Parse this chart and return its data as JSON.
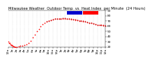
{
  "title": "Milwaukee Weather  Outdoor Temp  vs  Heat Index  per Minute  (24 Hours)",
  "bg_color": "#ffffff",
  "plot_bg": "#ffffff",
  "line_color_temp": "#ff0000",
  "line_color_heat": "#cc0000",
  "legend_blue": "#0000cc",
  "legend_red": "#ff0000",
  "ylim": [
    20,
    90
  ],
  "xlim": [
    0,
    1440
  ],
  "yticks": [
    20,
    30,
    40,
    50,
    60,
    70,
    80,
    90
  ],
  "grid_color": "#bbbbbb",
  "marker_size": 1.5,
  "title_fontsize": 3.8,
  "tick_fontsize": 3.2,
  "temp_data_x": [
    0,
    10,
    20,
    30,
    40,
    50,
    60,
    70,
    80,
    90,
    100,
    120,
    150,
    180,
    210,
    240,
    270,
    300,
    330,
    360,
    390,
    420,
    450,
    480,
    510,
    540,
    570,
    600,
    630,
    660,
    690,
    720,
    750,
    780,
    810,
    840,
    870,
    900,
    930,
    960,
    990,
    1020,
    1050,
    1080,
    1110,
    1140,
    1170,
    1200,
    1230,
    1260,
    1290,
    1320,
    1350,
    1380,
    1410,
    1440
  ],
  "temp_data_y": [
    30,
    28,
    27,
    25,
    24,
    23,
    22,
    21,
    21,
    20,
    20,
    20,
    21,
    22,
    22,
    23,
    25,
    28,
    32,
    38,
    44,
    50,
    55,
    60,
    64,
    67,
    69,
    71,
    72,
    73,
    74,
    74,
    74,
    75,
    75,
    75,
    74,
    74,
    73,
    73,
    72,
    72,
    71,
    70,
    69,
    69,
    68,
    67,
    66,
    65,
    64,
    63,
    62,
    62,
    62,
    61
  ],
  "heat_data_x": [
    570,
    600,
    630,
    660,
    690,
    720,
    750,
    780,
    810,
    840,
    870,
    900,
    930,
    960,
    990,
    1020,
    1050,
    1080,
    1110,
    1140,
    1170,
    1200,
    1230,
    1260,
    1290,
    1320,
    1350,
    1380,
    1410,
    1440
  ],
  "heat_data_y": [
    69,
    71,
    72,
    73,
    74,
    74,
    75,
    75,
    76,
    76,
    75,
    75,
    74,
    73,
    73,
    72,
    71,
    70,
    70,
    69,
    68,
    67,
    66,
    65,
    64,
    63,
    62,
    62,
    61,
    61
  ],
  "vline_x": 390,
  "vline_color": "#999999",
  "num_vlines": 25,
  "hours_labels": [
    "12a",
    "1a",
    "2a",
    "3a",
    "4a",
    "5a",
    "6a",
    "7a",
    "8a",
    "9a",
    "10a",
    "11a",
    "12p",
    "1p",
    "2p",
    "3p",
    "4p",
    "5p",
    "6p",
    "7p",
    "8p",
    "9p",
    "10p",
    "11p",
    "12a"
  ]
}
